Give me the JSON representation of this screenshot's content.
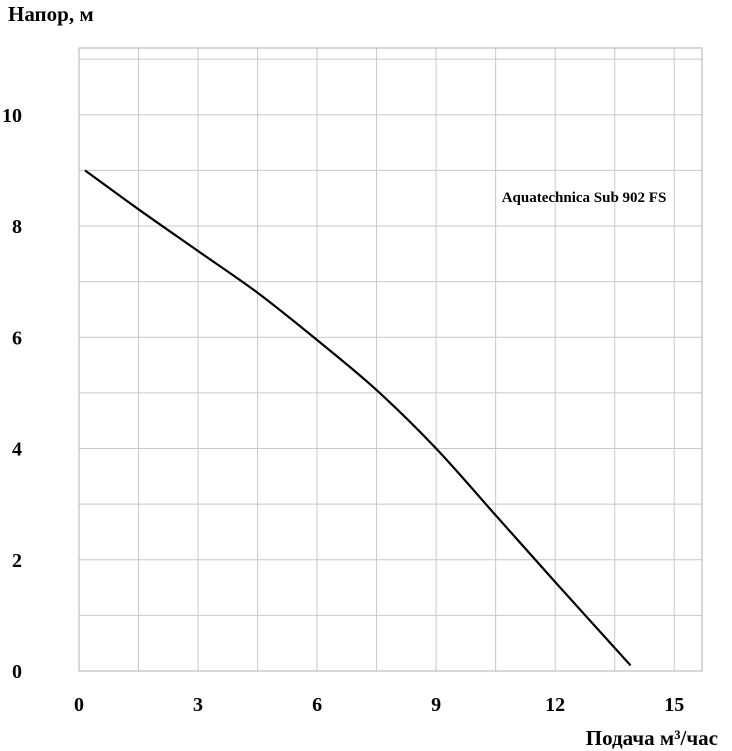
{
  "chart_data": {
    "type": "line",
    "ylabel": "Напор, м",
    "xlabel": "Подача  м³/час",
    "annotation": "Aquatechnica Sub 902 FS",
    "xlim": [
      0,
      15.7
    ],
    "ylim": [
      0,
      11.2
    ],
    "xticks": [
      0,
      3,
      6,
      9,
      12,
      15
    ],
    "yticks": [
      0,
      2,
      4,
      6,
      8,
      10
    ],
    "x_grid_step": 1.5,
    "y_grid_step": 1,
    "grid": true,
    "series": [
      {
        "color": "#000000",
        "x": [
          0.15,
          1.5,
          3,
          4.5,
          6,
          7.5,
          9,
          10.5,
          12,
          13.9
        ],
        "y": [
          9.0,
          8.3,
          7.55,
          6.8,
          5.95,
          5.05,
          4.0,
          2.8,
          1.6,
          0.1
        ]
      }
    ]
  }
}
